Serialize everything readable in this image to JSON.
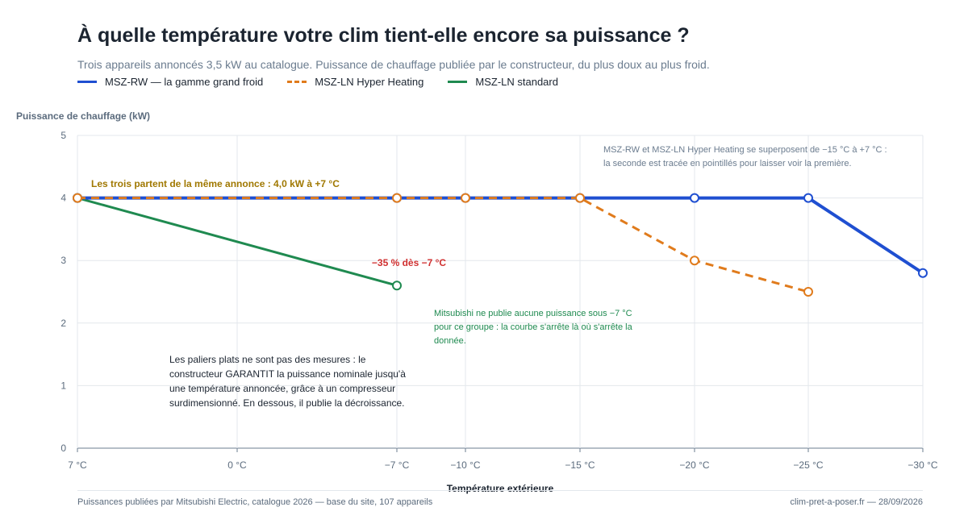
{
  "header": {
    "title": "À quelle température votre clim tient-elle encore sa puissance ?",
    "subtitle": "Trois appareils annoncés 3,5 kW au catalogue. Puissance de chauffage publiée par le constructeur, du plus doux au plus froid."
  },
  "colors": {
    "rw": "#1f4fd1",
    "ln_hh": "#e07b1c",
    "ln_std": "#1f8a50",
    "gold": "#a07800",
    "red": "#d03030",
    "grid": "#e3e7ec",
    "axis": "#6b7c8f"
  },
  "chart_data": {
    "type": "line",
    "title": "À quelle température votre clim tient-elle encore sa puissance ?",
    "xlabel": "Température extérieure",
    "ylabel": "Puissance de chauffage (kW)",
    "ylim": [
      0,
      5
    ],
    "yticks": [
      "0",
      "1",
      "2",
      "3",
      "4",
      "5"
    ],
    "x_ticks": [
      {
        "t": 7,
        "label": "7 °C"
      },
      {
        "t": 0,
        "label": "0 °C"
      },
      {
        "t": -7,
        "label": "−7 °C"
      },
      {
        "t": -10,
        "label": "−10 °C"
      },
      {
        "t": -15,
        "label": "−15 °C"
      },
      {
        "t": -20,
        "label": "−20 °C"
      },
      {
        "t": -25,
        "label": "−25 °C"
      },
      {
        "t": -30,
        "label": "−30 °C"
      }
    ],
    "x_direction": "decreasing temperature left to right",
    "grid": true,
    "legend_position": "top-left",
    "series": [
      {
        "key": "rw",
        "name": "MSZ-RW — la gamme grand froid",
        "style": "solid",
        "points": [
          [
            7,
            4.0
          ],
          [
            -7,
            4.0
          ],
          [
            -10,
            4.0
          ],
          [
            -15,
            4.0
          ],
          [
            -20,
            4.0
          ],
          [
            -25,
            4.0
          ],
          [
            -30,
            2.8
          ]
        ]
      },
      {
        "key": "ln_hh",
        "name": "MSZ-LN Hyper Heating",
        "style": "dashed",
        "points": [
          [
            7,
            4.0
          ],
          [
            -7,
            4.0
          ],
          [
            -10,
            4.0
          ],
          [
            -15,
            4.0
          ],
          [
            -20,
            3.0
          ],
          [
            -25,
            2.5
          ]
        ]
      },
      {
        "key": "ln_std",
        "name": "MSZ-LN standard",
        "style": "solid",
        "points": [
          [
            7,
            4.0
          ],
          [
            -7,
            2.6
          ]
        ]
      }
    ],
    "annotations": {
      "same_start": "Les trois partent de la même annonce : 4,0 kW à +7 °C",
      "drop": "−35 % dès −7 °C",
      "overlap": "MSZ-RW et MSZ-LN Hyper Heating se superposent de −15 °C à +7 °C : la seconde est tracée en pointillés pour laisser voir la première.",
      "no_data": "Mitsubishi ne publie aucune puissance sous −7 °C pour ce groupe : la courbe s'arrête là où s'arrête la donnée.",
      "paliers": "Les paliers plats ne sont pas des mesures : le constructeur GARANTIT la puissance nominale jusqu'à une température annoncée, grâce à un compresseur surdimensionné. En dessous, il publie la décroissance."
    }
  },
  "footer": {
    "source": "Puissances publiées par Mitsubishi Electric, catalogue 2026 — base du site, 107 appareils",
    "credit": "clim-pret-a-poser.fr — 28/09/2026"
  }
}
